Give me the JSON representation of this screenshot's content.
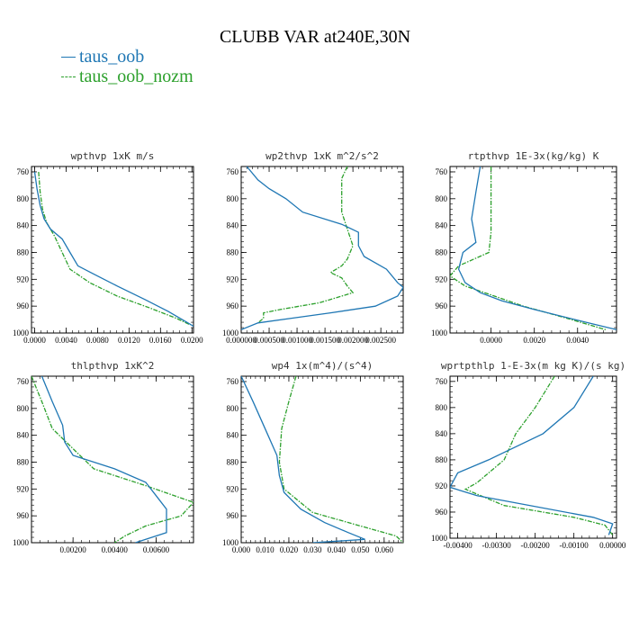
{
  "title": "CLUBB VAR at240E,30N",
  "legend": [
    {
      "label": "taus_oob",
      "color": "#1f77b4"
    },
    {
      "label": "taus_oob_nozm",
      "color": "#2ca02c"
    }
  ],
  "colors": {
    "series1": "#1f77b4",
    "series2": "#2ca02c",
    "axis": "#000000"
  },
  "chart_data": [
    {
      "type": "line",
      "title": "wpthvp  1xK m/s",
      "xlim": [
        -0.0004,
        0.0202
      ],
      "ylim": [
        1000,
        752
      ],
      "y_reversed": true,
      "xticks": [
        0.0,
        0.004,
        0.008,
        0.012,
        0.016,
        0.02
      ],
      "xtick_labels": [
        "0.0000",
        "0.0040",
        "0.0080",
        "0.0120",
        "0.0160",
        "0.0200"
      ],
      "yticks": [
        760,
        800,
        840,
        880,
        920,
        960,
        1000
      ],
      "series": [
        {
          "name": "taus_oob",
          "points": [
            [
              0.0,
              760
            ],
            [
              0.0003,
              785
            ],
            [
              0.0007,
              810
            ],
            [
              0.0012,
              830
            ],
            [
              0.002,
              845
            ],
            [
              0.0035,
              860
            ],
            [
              0.0045,
              880
            ],
            [
              0.0055,
              900
            ],
            [
              0.0075,
              912
            ],
            [
              0.0105,
              930
            ],
            [
              0.014,
              950
            ],
            [
              0.017,
              968
            ],
            [
              0.0192,
              983
            ],
            [
              0.0202,
              990
            ]
          ]
        },
        {
          "name": "taus_oob_nozm",
          "points": [
            [
              0.0005,
              760
            ],
            [
              0.0007,
              790
            ],
            [
              0.001,
              815
            ],
            [
              0.0015,
              835
            ],
            [
              0.0025,
              855
            ],
            [
              0.0035,
              880
            ],
            [
              0.0045,
              905
            ],
            [
              0.007,
              925
            ],
            [
              0.0105,
              945
            ],
            [
              0.0145,
              962
            ],
            [
              0.018,
              978
            ],
            [
              0.0198,
              988
            ]
          ]
        }
      ]
    },
    {
      "type": "line",
      "title": "wp2thvp  1xK m^2/s^2",
      "xlim": [
        0.0,
        0.0029
      ],
      "ylim": [
        1000,
        752
      ],
      "y_reversed": true,
      "xticks": [
        0.0,
        0.0005,
        0.001,
        0.0015,
        0.002,
        0.0025
      ],
      "xtick_labels": [
        "0.000000",
        "0.000500",
        "0.001000",
        "0.001500",
        "0.002000",
        "0.002500"
      ],
      "yticks": [
        760,
        800,
        840,
        880,
        920,
        960,
        1000
      ],
      "series": [
        {
          "name": "taus_oob",
          "points": [
            [
              0.0001,
              752
            ],
            [
              0.0003,
              772
            ],
            [
              0.0005,
              785
            ],
            [
              0.0008,
              800
            ],
            [
              0.0011,
              820
            ],
            [
              0.0018,
              838
            ],
            [
              0.0021,
              850
            ],
            [
              0.0021,
              870
            ],
            [
              0.0022,
              886
            ],
            [
              0.0026,
              905
            ],
            [
              0.0028,
              925
            ],
            [
              0.0029,
              932
            ],
            [
              0.0028,
              945
            ],
            [
              0.0024,
              960
            ],
            [
              0.0016,
              970
            ],
            [
              0.0009,
              978
            ],
            [
              0.0003,
              985
            ],
            [
              0.0,
              995
            ]
          ]
        },
        {
          "name": "taus_oob_nozm",
          "points": [
            [
              0.0019,
              752
            ],
            [
              0.0018,
              770
            ],
            [
              0.0018,
              790
            ],
            [
              0.0018,
              820
            ],
            [
              0.0019,
              845
            ],
            [
              0.002,
              870
            ],
            [
              0.0019,
              890
            ],
            [
              0.0018,
              900
            ],
            [
              0.0016,
              910
            ],
            [
              0.0018,
              918
            ],
            [
              0.0019,
              930
            ],
            [
              0.002,
              940
            ],
            [
              0.0018,
              945
            ],
            [
              0.0014,
              955
            ],
            [
              0.0007,
              965
            ],
            [
              0.0004,
              970
            ],
            [
              0.0004,
              978
            ],
            [
              0.0003,
              985
            ]
          ]
        }
      ]
    },
    {
      "type": "line",
      "title": "rtpthvp  1E-3x(kg/kg) K",
      "xlim": [
        -0.0019,
        0.0058
      ],
      "ylim": [
        1000,
        752
      ],
      "y_reversed": true,
      "xticks": [
        0.0,
        0.002,
        0.004
      ],
      "xtick_labels": [
        "0.0000",
        "0.0020",
        "0.0040"
      ],
      "yticks": [
        760,
        800,
        840,
        880,
        920,
        960,
        1000
      ],
      "series": [
        {
          "name": "taus_oob",
          "points": [
            [
              -0.0005,
              752
            ],
            [
              -0.0007,
              790
            ],
            [
              -0.0009,
              830
            ],
            [
              -0.0007,
              865
            ],
            [
              -0.0013,
              880
            ],
            [
              -0.0015,
              905
            ],
            [
              -0.0012,
              925
            ],
            [
              -0.0005,
              940
            ],
            [
              0.0005,
              952
            ],
            [
              0.002,
              965
            ],
            [
              0.0045,
              985
            ],
            [
              0.0058,
              995
            ]
          ]
        },
        {
          "name": "taus_oob_nozm",
          "points": [
            [
              0.0,
              752
            ],
            [
              0.0,
              800
            ],
            [
              0.0,
              850
            ],
            [
              -0.0001,
              880
            ],
            [
              -0.0015,
              900
            ],
            [
              -0.0019,
              915
            ],
            [
              -0.0012,
              930
            ],
            [
              -0.0003,
              940
            ],
            [
              0.0015,
              960
            ],
            [
              0.0035,
              978
            ],
            [
              0.0053,
              995
            ]
          ]
        }
      ]
    },
    {
      "type": "line",
      "title": "thlpthvp  1xK^2",
      "xlim": [
        0.0,
        0.0078
      ],
      "ylim": [
        1000,
        752
      ],
      "y_reversed": true,
      "xticks": [
        0.002,
        0.004,
        0.006
      ],
      "xtick_labels": [
        "0.00200",
        "0.00400",
        "0.00600"
      ],
      "yticks": [
        760,
        800,
        840,
        880,
        920,
        960,
        1000
      ],
      "series": [
        {
          "name": "taus_oob",
          "points": [
            [
              0.0005,
              752
            ],
            [
              0.001,
              790
            ],
            [
              0.0015,
              825
            ],
            [
              0.0016,
              850
            ],
            [
              0.002,
              870
            ],
            [
              0.004,
              890
            ],
            [
              0.0055,
              910
            ],
            [
              0.006,
              930
            ],
            [
              0.0065,
              950
            ],
            [
              0.0065,
              970
            ],
            [
              0.0065,
              985
            ],
            [
              0.005,
              1000
            ]
          ]
        },
        {
          "name": "taus_oob_nozm",
          "points": [
            [
              0.0,
              752
            ],
            [
              0.0005,
              790
            ],
            [
              0.001,
              830
            ],
            [
              0.002,
              860
            ],
            [
              0.003,
              890
            ],
            [
              0.0055,
              915
            ],
            [
              0.0078,
              940
            ],
            [
              0.0072,
              960
            ],
            [
              0.0055,
              975
            ],
            [
              0.0045,
              990
            ],
            [
              0.004,
              1000
            ]
          ]
        }
      ]
    },
    {
      "type": "line",
      "title": "wp4  1x(m^4)/(s^4)",
      "xlim": [
        0.0,
        0.068
      ],
      "ylim": [
        1000,
        752
      ],
      "y_reversed": true,
      "xticks": [
        0.0,
        0.01,
        0.02,
        0.03,
        0.04,
        0.05,
        0.06
      ],
      "xtick_labels": [
        "0.000",
        "0.010",
        "0.020",
        "0.030",
        "0.040",
        "0.050",
        "0.060"
      ],
      "yticks": [
        760,
        800,
        840,
        880,
        920,
        960,
        1000
      ],
      "series": [
        {
          "name": "taus_oob",
          "points": [
            [
              0.0,
              752
            ],
            [
              0.005,
              790
            ],
            [
              0.01,
              830
            ],
            [
              0.015,
              870
            ],
            [
              0.016,
              900
            ],
            [
              0.018,
              925
            ],
            [
              0.025,
              950
            ],
            [
              0.035,
              970
            ],
            [
              0.045,
              985
            ],
            [
              0.052,
              995
            ],
            [
              0.03,
              1000
            ]
          ]
        },
        {
          "name": "taus_oob_nozm",
          "points": [
            [
              0.023,
              752
            ],
            [
              0.02,
              790
            ],
            [
              0.017,
              830
            ],
            [
              0.016,
              880
            ],
            [
              0.018,
              920
            ],
            [
              0.03,
              955
            ],
            [
              0.05,
              975
            ],
            [
              0.065,
              990
            ],
            [
              0.068,
              1000
            ]
          ]
        }
      ]
    },
    {
      "type": "line",
      "title": "wprtpthlp  1-E-3x(m kg K)/(s kg)",
      "xlim": [
        -0.0042,
        0.0001
      ],
      "ylim": [
        1000,
        752
      ],
      "y_reversed": true,
      "xticks": [
        -0.004,
        -0.003,
        -0.002,
        -0.001,
        0.0
      ],
      "xtick_labels": [
        "-0.00400",
        "-0.00300",
        "-0.00200",
        "-0.00100",
        "0.00000"
      ],
      "yticks": [
        760,
        800,
        840,
        880,
        920,
        960,
        1000
      ],
      "series": [
        {
          "name": "taus_oob",
          "points": [
            [
              -0.0005,
              752
            ],
            [
              -0.001,
              800
            ],
            [
              -0.0018,
              840
            ],
            [
              -0.0032,
              880
            ],
            [
              -0.004,
              900
            ],
            [
              -0.0042,
              922
            ],
            [
              -0.0035,
              935
            ],
            [
              -0.0005,
              968
            ],
            [
              0.0,
              978
            ],
            [
              -0.0001,
              995
            ]
          ]
        },
        {
          "name": "taus_oob_nozm",
          "points": [
            [
              -0.0015,
              752
            ],
            [
              -0.002,
              800
            ],
            [
              -0.0025,
              840
            ],
            [
              -0.0028,
              880
            ],
            [
              -0.0035,
              915
            ],
            [
              -0.0038,
              925
            ],
            [
              -0.0028,
              950
            ],
            [
              -0.001,
              968
            ],
            [
              -0.0002,
              980
            ],
            [
              0.0,
              995
            ]
          ]
        }
      ]
    }
  ]
}
